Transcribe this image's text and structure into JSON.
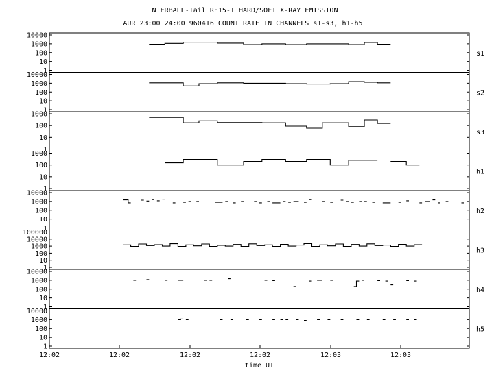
{
  "chart_data": {
    "type": "line",
    "title": "INTERBALL-Tail RF15-I HARD/SOFT X-RAY EMISSION",
    "subtitle": "AUR 23:00 24:00 960416  COUNT RATE IN CHANNELS s1-s3, h1-h5",
    "xlabel": "time UT",
    "x_tick_labels": [
      "12:02",
      "12:02",
      "12:02",
      "12:02",
      "12:03",
      "12:03"
    ],
    "y_scale": "log",
    "grid": false,
    "panels": [
      {
        "name": "s1",
        "ylim": [
          1,
          10000
        ],
        "ytick_labels": [
          "1",
          "10",
          "100",
          "1000",
          "10000"
        ],
        "segments": [
          [
            0.1,
            0.16,
            900
          ],
          [
            0.16,
            0.23,
            1100
          ],
          [
            0.23,
            0.36,
            1500
          ],
          [
            0.36,
            0.46,
            1200
          ],
          [
            0.46,
            0.53,
            800
          ],
          [
            0.53,
            0.62,
            1000
          ],
          [
            0.62,
            0.7,
            800
          ],
          [
            0.7,
            0.79,
            1000
          ],
          [
            0.79,
            0.86,
            1000
          ],
          [
            0.86,
            0.92,
            800
          ],
          [
            0.92,
            0.97,
            1400
          ],
          [
            0.97,
            1.02,
            900
          ]
        ]
      },
      {
        "name": "s2",
        "ylim": [
          1,
          10000
        ],
        "ytick_labels": [
          "1",
          "10",
          "100",
          "1000",
          "10000"
        ],
        "segments": [
          [
            0.1,
            0.23,
            1100
          ],
          [
            0.23,
            0.29,
            500
          ],
          [
            0.29,
            0.36,
            900
          ],
          [
            0.36,
            0.46,
            1100
          ],
          [
            0.46,
            0.53,
            1000
          ],
          [
            0.53,
            0.62,
            1000
          ],
          [
            0.62,
            0.7,
            900
          ],
          [
            0.7,
            0.79,
            800
          ],
          [
            0.79,
            0.86,
            900
          ],
          [
            0.86,
            0.92,
            1500
          ],
          [
            0.92,
            0.97,
            1300
          ],
          [
            0.97,
            1.02,
            1100
          ]
        ]
      },
      {
        "name": "s3",
        "ylim": [
          1,
          1000
        ],
        "ytick_labels": [
          "1",
          "10",
          "100",
          "1000"
        ],
        "segments": [
          [
            0.1,
            0.23,
            500
          ],
          [
            0.23,
            0.29,
            170
          ],
          [
            0.29,
            0.36,
            250
          ],
          [
            0.36,
            0.53,
            180
          ],
          [
            0.53,
            0.62,
            170
          ],
          [
            0.62,
            0.7,
            90
          ],
          [
            0.7,
            0.76,
            60
          ],
          [
            0.76,
            0.86,
            170
          ],
          [
            0.86,
            0.92,
            80
          ],
          [
            0.92,
            0.97,
            300
          ],
          [
            0.97,
            1.02,
            150
          ]
        ]
      },
      {
        "name": "h1",
        "ylim": [
          1,
          1000
        ],
        "ytick_labels": [
          "1",
          "10",
          "100",
          "1000"
        ],
        "segments": [
          [
            0.16,
            0.23,
            150
          ],
          [
            0.23,
            0.36,
            300
          ],
          [
            0.36,
            0.46,
            100
          ],
          [
            0.46,
            0.53,
            200
          ],
          [
            0.53,
            0.62,
            300
          ],
          [
            0.62,
            0.7,
            200
          ],
          [
            0.7,
            0.79,
            300
          ],
          [
            0.79,
            0.86,
            100
          ],
          [
            0.86,
            0.92,
            250
          ],
          [
            0.92,
            0.97,
            250
          ],
          [
            1.02,
            1.08,
            200
          ],
          [
            1.08,
            1.13,
            100
          ]
        ]
      },
      {
        "name": "h2",
        "ylim": [
          1,
          10000
        ],
        "ytick_labels": [
          "1",
          "10",
          "100",
          "1000",
          "10000"
        ],
        "segments": [
          [
            0.0,
            0.02,
            1500
          ],
          [
            0.02,
            0.03,
            700
          ],
          [
            0.07,
            0.08,
            1400
          ],
          [
            0.09,
            0.1,
            1100
          ],
          [
            0.11,
            0.12,
            1600
          ],
          [
            0.13,
            0.14,
            1200
          ],
          [
            0.15,
            0.16,
            1800
          ],
          [
            0.17,
            0.18,
            900
          ],
          [
            0.19,
            0.2,
            700
          ],
          [
            0.23,
            0.24,
            800
          ],
          [
            0.25,
            0.26,
            1000
          ],
          [
            0.28,
            0.29,
            1000
          ],
          [
            0.33,
            0.34,
            900
          ],
          [
            0.35,
            0.38,
            800
          ],
          [
            0.39,
            0.4,
            1000
          ],
          [
            0.42,
            0.43,
            700
          ],
          [
            0.45,
            0.46,
            1000
          ],
          [
            0.47,
            0.48,
            900
          ],
          [
            0.5,
            0.51,
            1000
          ],
          [
            0.52,
            0.53,
            700
          ],
          [
            0.55,
            0.56,
            1000
          ],
          [
            0.57,
            0.6,
            700
          ],
          [
            0.61,
            0.62,
            1000
          ],
          [
            0.63,
            0.64,
            800
          ],
          [
            0.65,
            0.67,
            1000
          ],
          [
            0.69,
            0.7,
            800
          ],
          [
            0.71,
            0.72,
            1600
          ],
          [
            0.73,
            0.75,
            900
          ],
          [
            0.76,
            0.77,
            1000
          ],
          [
            0.79,
            0.8,
            800
          ],
          [
            0.81,
            0.82,
            900
          ],
          [
            0.83,
            0.84,
            1400
          ],
          [
            0.85,
            0.86,
            1000
          ],
          [
            0.87,
            0.88,
            800
          ],
          [
            0.9,
            0.91,
            1000
          ],
          [
            0.92,
            0.93,
            1000
          ],
          [
            0.95,
            0.96,
            800
          ],
          [
            0.99,
            1.02,
            700
          ],
          [
            1.05,
            1.06,
            800
          ],
          [
            1.08,
            1.09,
            1200
          ],
          [
            1.1,
            1.11,
            900
          ],
          [
            1.13,
            1.14,
            700
          ],
          [
            1.15,
            1.17,
            1000
          ],
          [
            1.18,
            1.19,
            1500
          ],
          [
            1.2,
            1.21,
            700
          ],
          [
            1.23,
            1.24,
            1000
          ],
          [
            1.26,
            1.27,
            900
          ],
          [
            1.29,
            1.3,
            700
          ]
        ]
      },
      {
        "name": "h3",
        "ylim": [
          1,
          100000
        ],
        "ytick_labels": [
          "1",
          "10",
          "100",
          "1000",
          "10000",
          "100000"
        ],
        "segments": [
          [
            0.0,
            0.03,
            1500
          ],
          [
            0.03,
            0.06,
            900
          ],
          [
            0.06,
            0.09,
            2000
          ],
          [
            0.09,
            0.12,
            1200
          ],
          [
            0.12,
            0.15,
            1600
          ],
          [
            0.15,
            0.18,
            1000
          ],
          [
            0.18,
            0.21,
            2200
          ],
          [
            0.21,
            0.24,
            900
          ],
          [
            0.24,
            0.27,
            1500
          ],
          [
            0.27,
            0.3,
            1100
          ],
          [
            0.3,
            0.33,
            2000
          ],
          [
            0.33,
            0.36,
            900
          ],
          [
            0.36,
            0.39,
            1300
          ],
          [
            0.39,
            0.42,
            1000
          ],
          [
            0.42,
            0.45,
            1700
          ],
          [
            0.45,
            0.48,
            900
          ],
          [
            0.48,
            0.51,
            2100
          ],
          [
            0.51,
            0.54,
            1200
          ],
          [
            0.54,
            0.57,
            1500
          ],
          [
            0.57,
            0.6,
            900
          ],
          [
            0.6,
            0.63,
            1800
          ],
          [
            0.63,
            0.66,
            1000
          ],
          [
            0.66,
            0.69,
            1400
          ],
          [
            0.69,
            0.72,
            2300
          ],
          [
            0.72,
            0.75,
            900
          ],
          [
            0.75,
            0.78,
            1500
          ],
          [
            0.78,
            0.81,
            1100
          ],
          [
            0.81,
            0.84,
            2000
          ],
          [
            0.84,
            0.87,
            900
          ],
          [
            0.87,
            0.9,
            1700
          ],
          [
            0.9,
            0.93,
            1000
          ],
          [
            0.93,
            0.96,
            2100
          ],
          [
            0.96,
            0.99,
            1200
          ],
          [
            0.99,
            1.02,
            1400
          ],
          [
            1.02,
            1.05,
            900
          ],
          [
            1.05,
            1.08,
            1800
          ],
          [
            1.08,
            1.11,
            1000
          ],
          [
            1.11,
            1.14,
            1600
          ]
        ]
      },
      {
        "name": "h4",
        "ylim": [
          1,
          10000
        ],
        "ytick_labels": [
          "1",
          "10",
          "100",
          "1000",
          "10000"
        ],
        "segments": [
          [
            0.04,
            0.05,
            1000
          ],
          [
            0.09,
            0.1,
            1200
          ],
          [
            0.16,
            0.17,
            1000
          ],
          [
            0.21,
            0.22,
            1000
          ],
          [
            0.22,
            0.23,
            1000
          ],
          [
            0.31,
            0.32,
            1000
          ],
          [
            0.33,
            0.34,
            1000
          ],
          [
            0.4,
            0.41,
            1500
          ],
          [
            0.54,
            0.55,
            1000
          ],
          [
            0.57,
            0.58,
            900
          ],
          [
            0.65,
            0.66,
            200
          ],
          [
            0.71,
            0.72,
            800
          ],
          [
            0.74,
            0.76,
            1000
          ],
          [
            0.79,
            0.8,
            1000
          ],
          [
            0.88,
            0.89,
            200
          ],
          [
            0.89,
            0.9,
            800
          ],
          [
            0.91,
            0.92,
            1000
          ],
          [
            0.97,
            0.98,
            900
          ],
          [
            1.0,
            1.01,
            800
          ],
          [
            1.02,
            1.03,
            300
          ],
          [
            1.08,
            1.09,
            900
          ],
          [
            1.11,
            1.12,
            800
          ]
        ]
      },
      {
        "name": "h5",
        "ylim": [
          1,
          10000
        ],
        "ytick_labels": [
          "1",
          "10",
          "100",
          "1000",
          "10000"
        ],
        "segments": [
          [
            0.21,
            0.22,
            1000
          ],
          [
            0.22,
            0.23,
            1200
          ],
          [
            0.24,
            0.25,
            1000
          ],
          [
            0.37,
            0.38,
            1000
          ],
          [
            0.41,
            0.42,
            1000
          ],
          [
            0.47,
            0.48,
            1000
          ],
          [
            0.52,
            0.53,
            1000
          ],
          [
            0.57,
            0.58,
            1000
          ],
          [
            0.6,
            0.61,
            1000
          ],
          [
            0.62,
            0.63,
            1000
          ],
          [
            0.66,
            0.67,
            1000
          ],
          [
            0.69,
            0.7,
            800
          ],
          [
            0.74,
            0.75,
            1000
          ],
          [
            0.78,
            0.79,
            1000
          ],
          [
            0.83,
            0.84,
            1000
          ],
          [
            0.89,
            0.9,
            1000
          ],
          [
            0.93,
            0.94,
            1000
          ],
          [
            0.99,
            1.0,
            1000
          ],
          [
            1.03,
            1.04,
            1000
          ],
          [
            1.08,
            1.09,
            1000
          ],
          [
            1.11,
            1.12,
            1000
          ]
        ]
      }
    ]
  }
}
